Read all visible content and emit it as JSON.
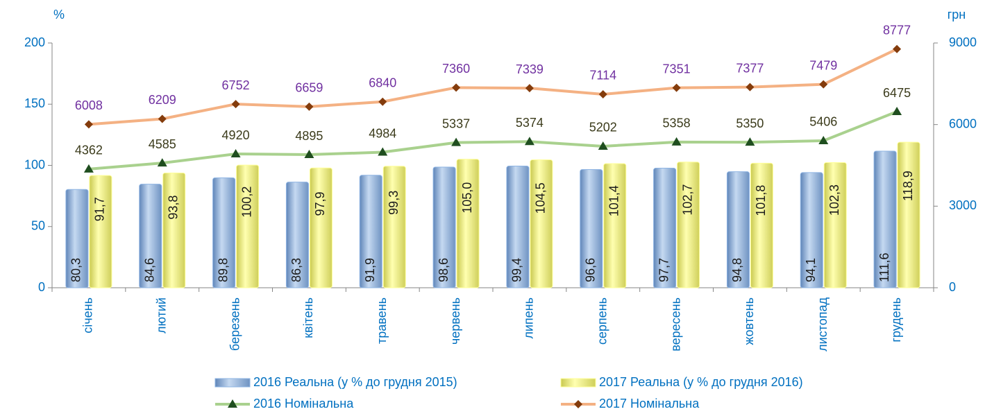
{
  "chart_data": {
    "type": "bar",
    "ylabel": "%",
    "y2label": "грн",
    "categories": [
      "січень",
      "лютий",
      "березень",
      "квітень",
      "травень",
      "червень",
      "липень",
      "серпень",
      "вересень",
      "жовтень",
      "листопад",
      "грудень"
    ],
    "ylim": [
      0,
      200
    ],
    "yticks": [
      0,
      50,
      100,
      150,
      200
    ],
    "y2lim": [
      0,
      9000
    ],
    "y2ticks": [
      0,
      3000,
      6000,
      9000
    ],
    "series": [
      {
        "name": "2016 Реальна (у % до грудня 2015)",
        "type": "bar",
        "color": "#8eb4e3",
        "values": [
          80.3,
          84.6,
          89.8,
          86.3,
          91.9,
          98.6,
          99.4,
          96.6,
          97.7,
          94.8,
          94.1,
          111.6
        ],
        "value_labels": [
          "80,3",
          "84,6",
          "89,8",
          "86,3",
          "91,9",
          "98,6",
          "99,4",
          "96,6",
          "97,7",
          "94,8",
          "94,1",
          "111,6"
        ]
      },
      {
        "name": "2017 Реальна (у % до грудня 2016)",
        "type": "bar",
        "color": "#ffff99",
        "values": [
          91.7,
          93.8,
          100.2,
          97.9,
          99.3,
          105.0,
          104.5,
          101.4,
          102.7,
          101.8,
          102.3,
          118.9
        ],
        "value_labels": [
          "91,7",
          "93,8",
          "100,2",
          "97,9",
          "99,3",
          "105,0",
          "104,5",
          "101,4",
          "102,7",
          "101,8",
          "102,3",
          "118,9"
        ]
      },
      {
        "name": "2016 Номінальна",
        "type": "line",
        "axis": "y2",
        "color": "#a9d18e",
        "marker_color": "#1f4e1f",
        "label_color": "#3b3b1b",
        "values": [
          4362,
          4585,
          4920,
          4895,
          4984,
          5337,
          5374,
          5202,
          5358,
          5350,
          5406,
          6475
        ]
      },
      {
        "name": "2017 Номінальна",
        "type": "line",
        "axis": "y2",
        "color": "#f4b183",
        "marker_color": "#843c0c",
        "label_color": "#7030a0",
        "values": [
          6008,
          6209,
          6752,
          6659,
          6840,
          7360,
          7339,
          7114,
          7351,
          7377,
          7479,
          8777
        ]
      }
    ]
  }
}
